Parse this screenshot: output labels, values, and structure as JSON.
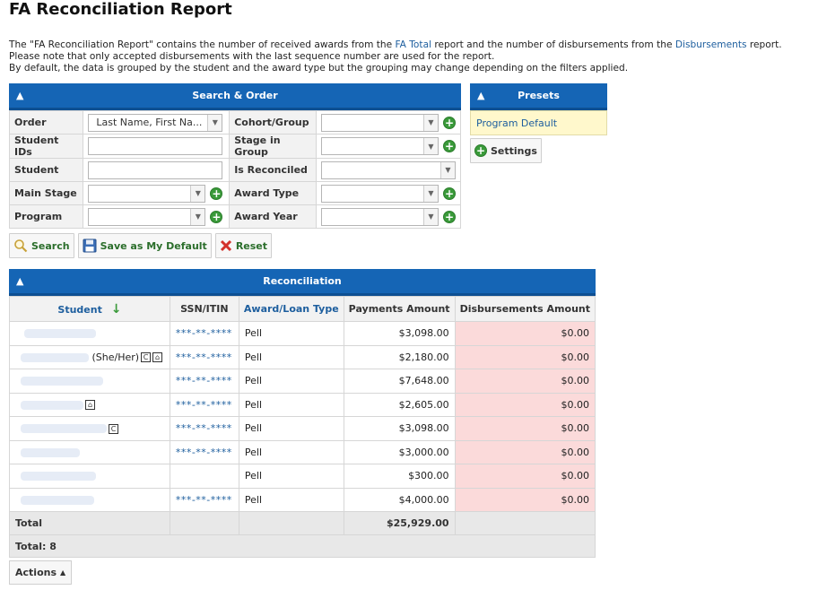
{
  "page": {
    "title": "FA Reconciliation Report",
    "desc1_pre": "The \"FA Reconciliation Report\" contains the number of received awards from the ",
    "desc1_link1": "FA Total",
    "desc1_mid": " report and the number of disbursements from the ",
    "desc1_link2": "Disbursements",
    "desc1_post": " report.",
    "desc2": "Please note that only accepted disbursements with the last sequence number are used for the report.",
    "desc3": "By default, the data is grouped by the student and the award type but the grouping may change depending on the filters applied."
  },
  "search": {
    "header": "Search & Order",
    "order_label": "Order",
    "order_value": "Last Name, First Na...",
    "student_ids_label": "Student IDs",
    "student_label": "Student",
    "main_stage_label": "Main Stage",
    "program_label": "Program",
    "cohort_label": "Cohort/Group",
    "stage_in_group_label": "Stage in Group",
    "is_reconciled_label": "Is Reconciled",
    "award_type_label": "Award Type",
    "award_year_label": "Award Year",
    "search_btn": "Search",
    "save_default_btn": "Save as My Default",
    "reset_btn": "Reset"
  },
  "presets": {
    "header": "Presets",
    "item": "Program Default",
    "settings_btn": "Settings"
  },
  "recon": {
    "header": "Reconciliation",
    "columns": {
      "student": "Student",
      "ssn": "SSN/ITIN",
      "award": "Award/Loan Type",
      "payments": "Payments Amount",
      "disb": "Disbursements Amount"
    },
    "rows": [
      {
        "suffix": "",
        "ssn": "***-**-****",
        "award": "Pell",
        "payments": "$3,098.00",
        "disb": "$0.00"
      },
      {
        "suffix": "(She/Her)",
        "ssn": "***-**-****",
        "award": "Pell",
        "payments": "$2,180.00",
        "disb": "$0.00"
      },
      {
        "suffix": "",
        "ssn": "***-**-****",
        "award": "Pell",
        "payments": "$7,648.00",
        "disb": "$0.00"
      },
      {
        "suffix": "",
        "ssn": "***-**-****",
        "award": "Pell",
        "payments": "$2,605.00",
        "disb": "$0.00"
      },
      {
        "suffix": "",
        "ssn": "***-**-****",
        "award": "Pell",
        "payments": "$3,098.00",
        "disb": "$0.00"
      },
      {
        "suffix": "",
        "ssn": "***-**-****",
        "award": "Pell",
        "payments": "$3,000.00",
        "disb": "$0.00"
      },
      {
        "suffix": "",
        "ssn": "",
        "award": "Pell",
        "payments": "$300.00",
        "disb": "$0.00"
      },
      {
        "suffix": "",
        "ssn": "***-**-****",
        "award": "Pell",
        "payments": "$4,000.00",
        "disb": "$0.00"
      }
    ],
    "total_label": "Total",
    "total_payments": "$25,929.00",
    "count_label": "Total: 8"
  },
  "actions": {
    "label": "Actions"
  },
  "colors": {
    "header_blue": "#1565b5",
    "disb_bg": "#fbdada",
    "preset_bg": "#fff8cc"
  },
  "icons": [
    "chevron-up-icon",
    "magnifier-icon",
    "floppy-disk-icon",
    "red-x-icon",
    "plus-circle-icon",
    "down-arrow-icon",
    "dropdown-arrow-icon",
    "pronoun-badge-icon",
    "house-icon"
  ]
}
